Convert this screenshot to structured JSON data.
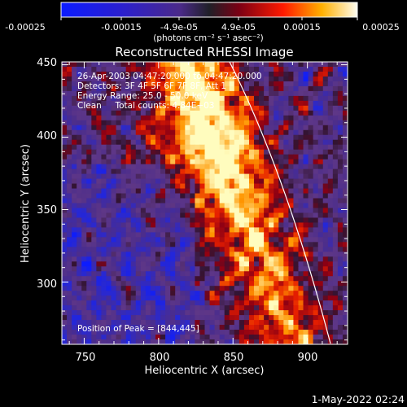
{
  "colorbar": {
    "ticks": [
      "-0.00025",
      "-0.00015",
      "-4.9e-05",
      "4.9e-05",
      "0.00015",
      "0.00025"
    ],
    "unit": "(photons cm⁻² s⁻¹ asec⁻²)"
  },
  "image": {
    "title": "Reconstructed RHESSI Image",
    "xlabel": "Heliocentric X (arcsec)",
    "ylabel": "Heliocentric Y (arcsec)",
    "xticks": [
      "750",
      "800",
      "850",
      "900"
    ],
    "yticks": [
      "300",
      "350",
      "400",
      "450"
    ],
    "x_range": [
      735,
      927
    ],
    "y_range": [
      257,
      452
    ],
    "annotations": [
      "26-Apr-2003 04:47:20.000 to 04:47:20.000",
      "Detectors: 3F 4F 5F 6F 7F 8F, Att 1",
      "Energy Range: 25.0 - 50.0 keV",
      "Clean     Total counts: 4.84E+03"
    ],
    "peak_label": "Position of Peak = [844,445]",
    "peak": [
      844,
      445
    ],
    "limb_line": "white solar limb arc from top-center to lower-right"
  },
  "footer": {
    "timestamp": "1-May-2022 02:24"
  },
  "colors": {
    "background": "#000000",
    "text": "#ffffff",
    "low": "#0000ff",
    "mid": "#5a2a9a",
    "high": "#ff2a00",
    "peak": "#ffff99"
  }
}
